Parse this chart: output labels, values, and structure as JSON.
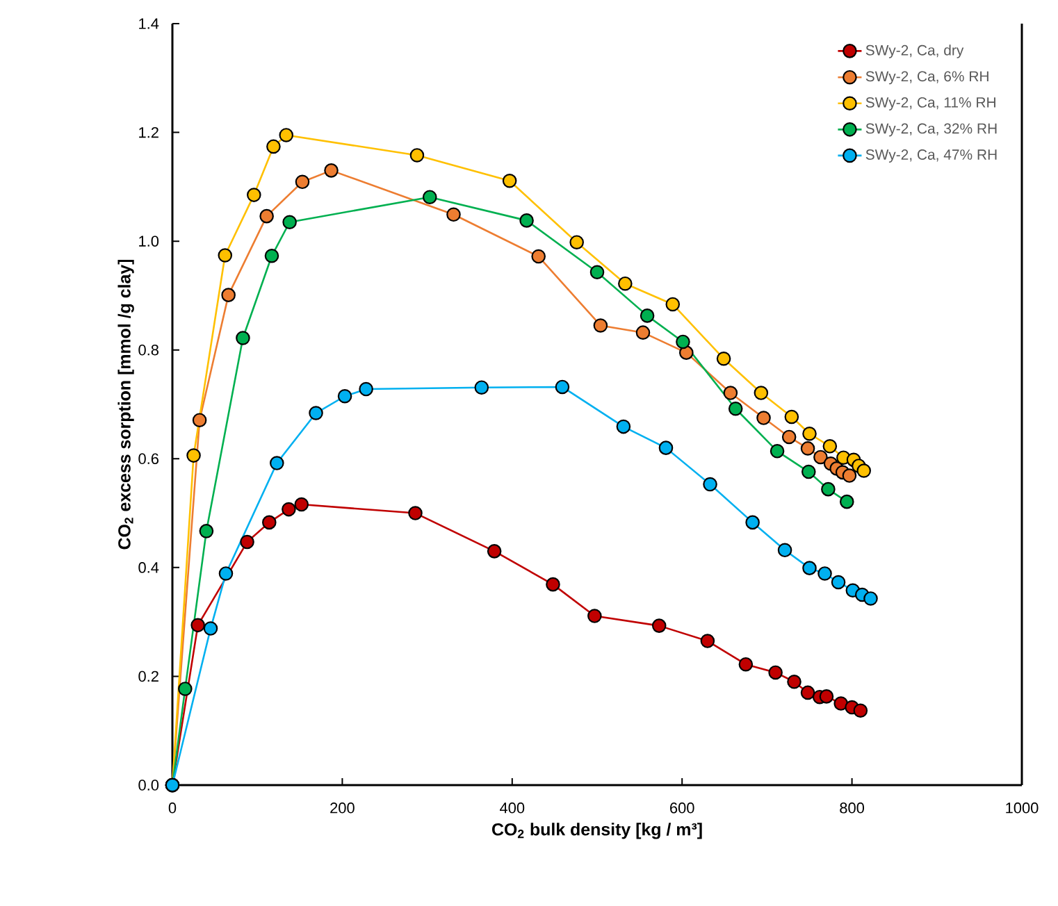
{
  "chart_data": {
    "type": "line",
    "xlabel": "CO$_{2}$ bulk density [kg / m³]",
    "ylabel": "CO$_{2}$ excess sorption  [mmol /g clay]",
    "xlim": [
      0,
      1000
    ],
    "xticks": [
      0,
      200,
      400,
      600,
      800,
      1000
    ],
    "ylim": [
      0,
      1.4
    ],
    "yticks": [
      {
        "value": 0,
        "label": "0.0"
      },
      {
        "value": 0.2,
        "label": "0.2"
      },
      {
        "value": 0.4,
        "label": "0.4"
      },
      {
        "value": 0.6,
        "label": "0.6"
      },
      {
        "value": 0.8,
        "label": "0.8"
      },
      {
        "value": 1.0,
        "label": "1.0"
      },
      {
        "value": 1.2,
        "label": "1.2"
      },
      {
        "value": 1.4,
        "label": "1.4"
      }
    ],
    "marker": "circle",
    "legend": "top right",
    "grid": false,
    "series": [
      {
        "name": "SWy-2, Ca, dry",
        "color": "#c00000",
        "x": [
          0,
          30,
          58,
          88,
          114,
          137,
          152,
          286,
          379,
          448,
          497,
          573,
          630,
          675,
          710,
          732,
          748,
          762,
          770,
          787,
          800,
          810
        ],
        "values": [
          0,
          0.294,
          null,
          0.447,
          0.483,
          0.507,
          0.516,
          0.5,
          0.43,
          0.369,
          0.311,
          0.293,
          0.265,
          0.222,
          0.207,
          0.19,
          0.17,
          0.162,
          0.163,
          0.15,
          0.143,
          0.137
        ]
      },
      {
        "name": "SWy-2, Ca, 6% RH",
        "color": "#ed7d31",
        "x": [
          0,
          32,
          66,
          111,
          153,
          187,
          331,
          431,
          504,
          554,
          605,
          657,
          696,
          726,
          748,
          763,
          775,
          782,
          789,
          797
        ],
        "values": [
          0,
          0.671,
          0.901,
          1.046,
          1.109,
          1.13,
          1.049,
          0.972,
          0.845,
          0.832,
          0.795,
          0.721,
          0.675,
          0.64,
          0.619,
          0.603,
          0.591,
          0.582,
          0.575,
          0.569
        ]
      },
      {
        "name": "SWy-2, Ca, 11% RH",
        "color": "#ffc000",
        "x": [
          0,
          25,
          62,
          96,
          119,
          134,
          288,
          397,
          476,
          533,
          589,
          649,
          693,
          729,
          750,
          774,
          790,
          802,
          808,
          814
        ],
        "values": [
          0,
          0.606,
          0.974,
          1.085,
          1.174,
          1.195,
          1.158,
          1.111,
          0.998,
          0.922,
          0.884,
          0.784,
          0.721,
          0.677,
          0.646,
          0.623,
          0.602,
          0.598,
          0.587,
          0.578
        ]
      },
      {
        "name": "SWy-2, Ca, 32% RH",
        "color": "#00b050",
        "x": [
          0,
          15,
          40,
          83,
          117,
          138,
          303,
          417,
          500,
          559,
          601,
          663,
          712,
          749,
          772,
          794
        ],
        "values": [
          0,
          0.177,
          0.467,
          0.822,
          0.973,
          1.035,
          1.081,
          1.038,
          0.943,
          0.863,
          0.815,
          0.692,
          0.614,
          0.576,
          0.544,
          0.521
        ]
      },
      {
        "name": "SWy-2, Ca, 47% RH",
        "color": "#00b0f0",
        "x": [
          0,
          45,
          63,
          123,
          169,
          203,
          228,
          364,
          459,
          531,
          581,
          633,
          683,
          721,
          750,
          768,
          784,
          801,
          812,
          822
        ],
        "values": [
          0,
          0.288,
          0.389,
          0.592,
          0.684,
          0.715,
          0.728,
          0.731,
          0.732,
          0.659,
          0.62,
          0.553,
          0.483,
          0.432,
          0.399,
          0.389,
          0.373,
          0.358,
          0.35,
          0.343
        ]
      }
    ]
  }
}
